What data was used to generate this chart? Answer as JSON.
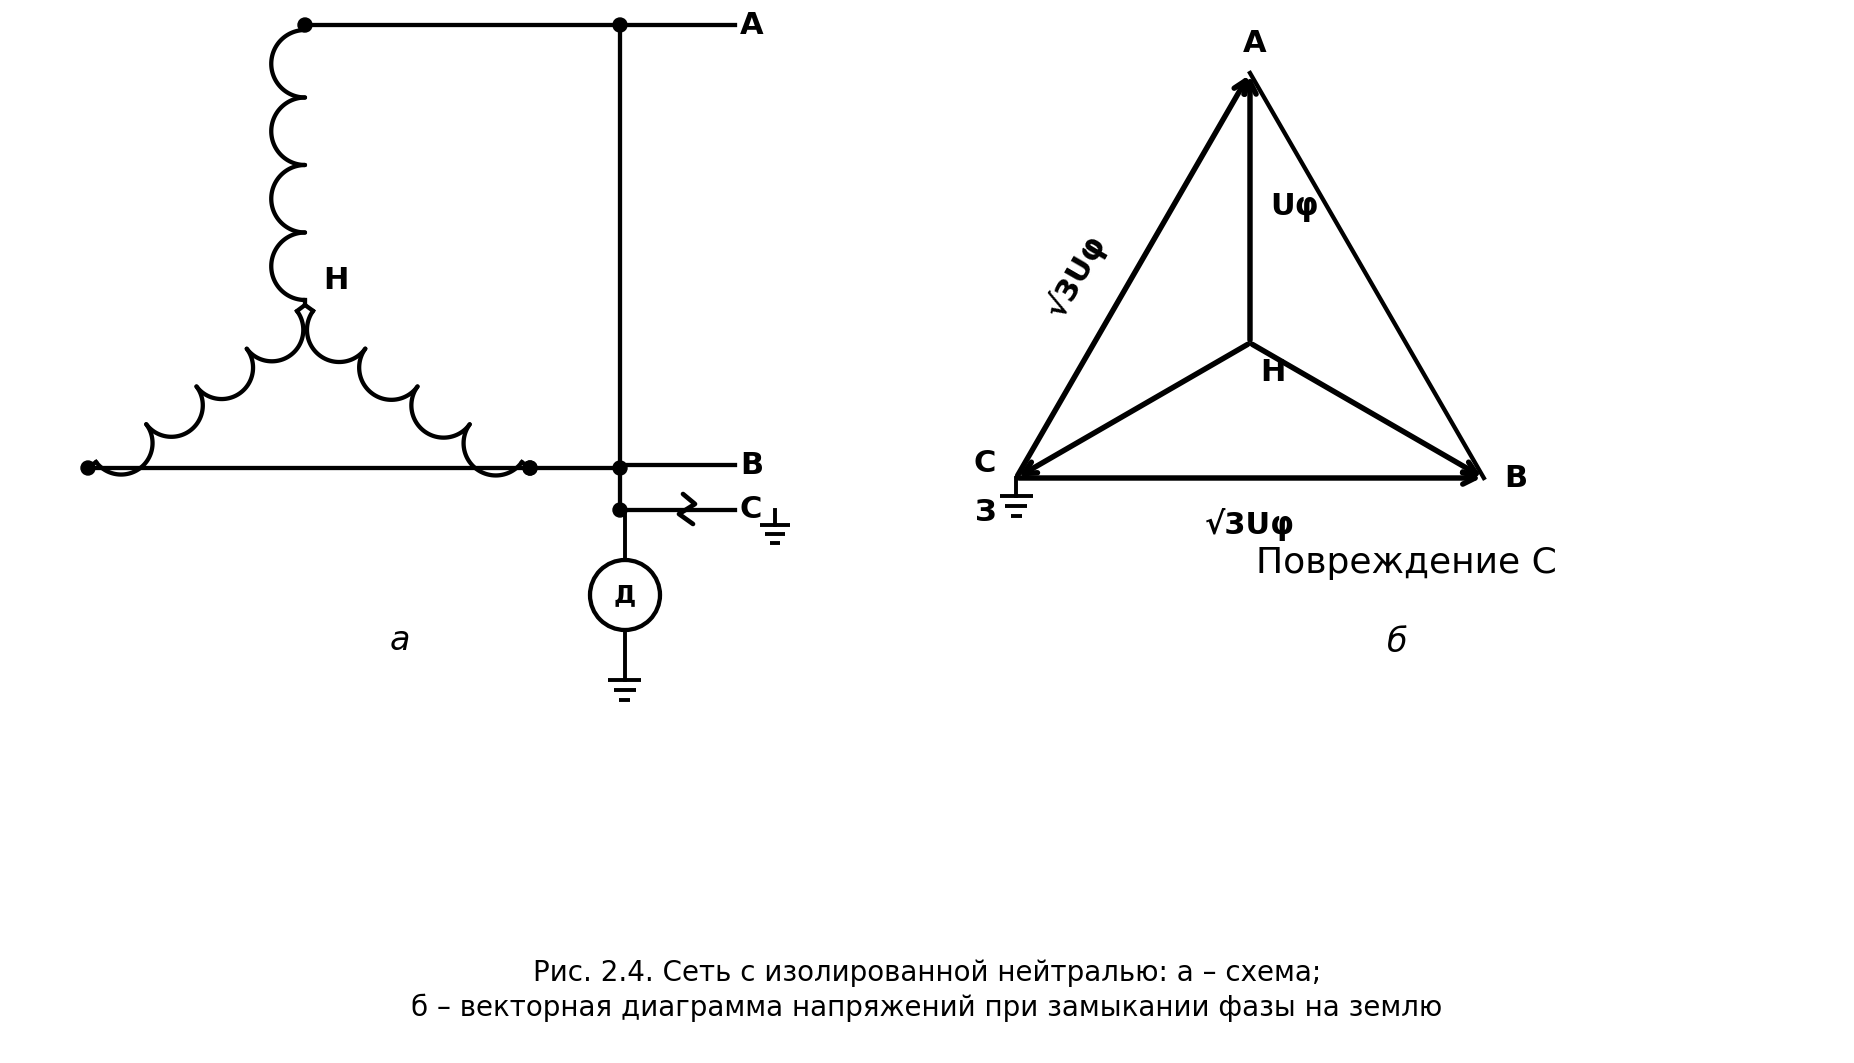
{
  "bg_color": "#ffffff",
  "line_color": "#000000",
  "lw": 2.8,
  "fig_width": 18.54,
  "fig_height": 10.63,
  "caption_line1": "Рис. 2.4. Сеть с изолированной нейтралью: а – схема;",
  "caption_line2": "б – векторная диаграмма напряжений при замыкании фазы на землю",
  "label_a": "A",
  "label_b": "B",
  "label_c": "C",
  "label_h": "H",
  "label_d": "Д",
  "label_z": "З",
  "label_uphi": "Uφ",
  "label_sqrt3uphi_diag": "√3Uφ",
  "label_sqrt3uphi_horiz": "√3Uφ",
  "label_povrezhdenie": "Повреждение C",
  "label_b_italic": "б",
  "label_a_italic": "а",
  "font_size_label": 22,
  "font_size_caption": 20
}
